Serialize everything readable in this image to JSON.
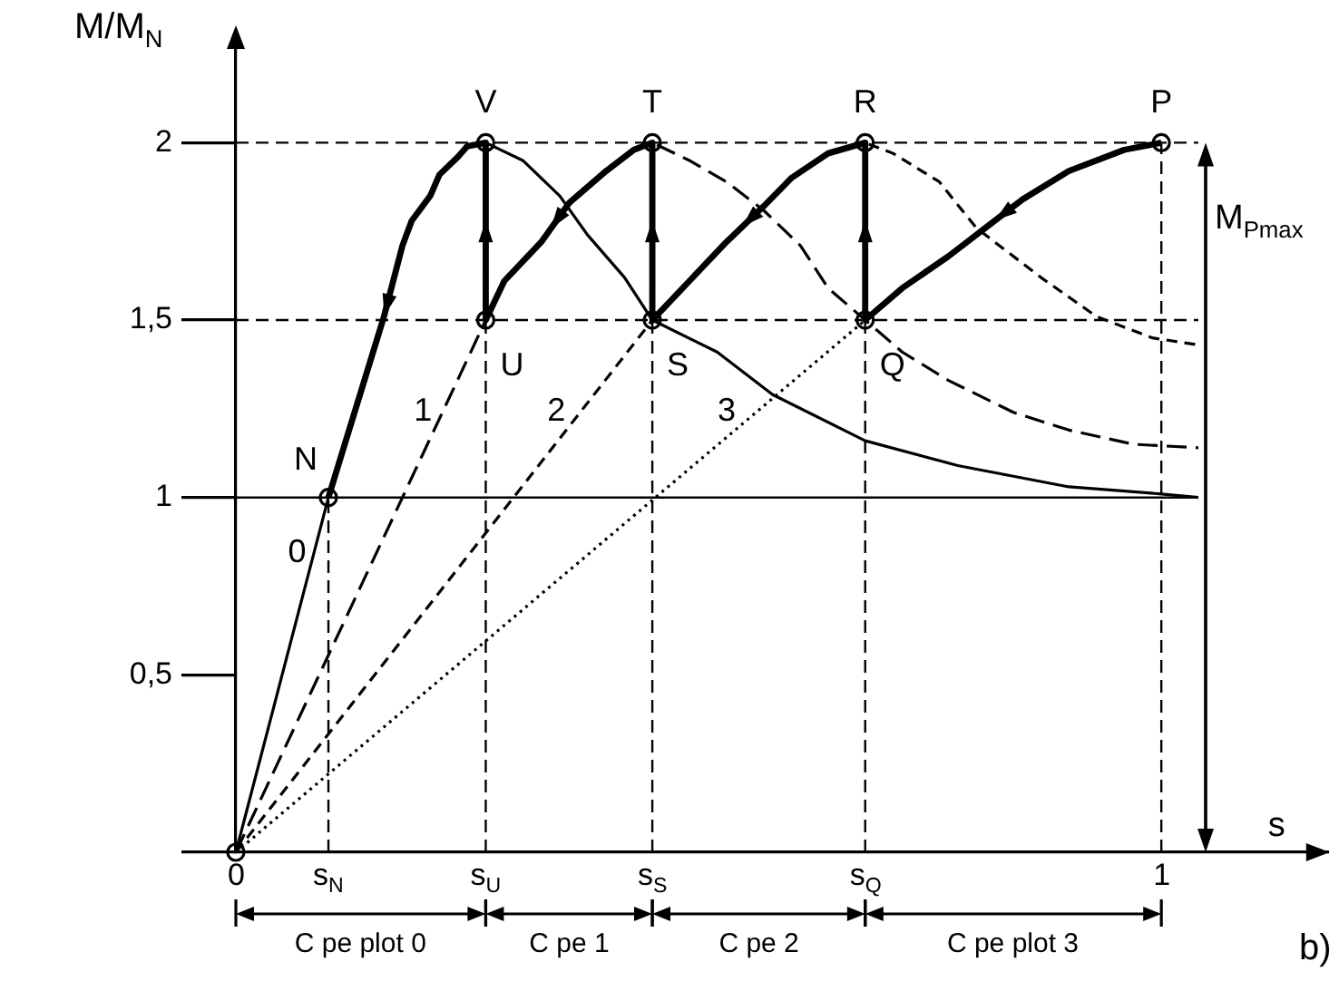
{
  "chart_data": {
    "type": "line",
    "xlabel": "s",
    "ylabel": "M/M$_{N}$",
    "xlim": [
      0,
      1.18
    ],
    "ylim": [
      0,
      2.3
    ],
    "xticks": [
      0,
      {
        "value": 0.1,
        "label": "s$_{N}$"
      },
      {
        "value": 0.27,
        "label": "s$_{U}$"
      },
      {
        "value": 0.45,
        "label": "s$_{S}$"
      },
      {
        "value": 0.68,
        "label": "s$_{Q}$"
      },
      1
    ],
    "yticks": [
      {
        "value": 0,
        "label": null
      },
      {
        "value": 0.5,
        "label": "0,5"
      },
      1,
      {
        "value": 1.5,
        "label": "1,5"
      },
      2
    ],
    "grid": false,
    "legend": false,
    "series": [
      {
        "name": "0",
        "type": "line",
        "line_style": "solid",
        "color": "#000000",
        "x": [
          0,
          0.1,
          0.14,
          0.16,
          0.18,
          0.19,
          0.21,
          0.22,
          0.24,
          0.25,
          0.27,
          0.31,
          0.35,
          0.38,
          0.42,
          0.45,
          0.52,
          0.58,
          0.68,
          0.78,
          0.9,
          1,
          1.04
        ],
        "values": [
          0,
          1,
          1.34,
          1.51,
          1.71,
          1.78,
          1.85,
          1.91,
          1.96,
          1.99,
          2,
          1.95,
          1.85,
          1.74,
          1.62,
          1.5,
          1.41,
          1.29,
          1.16,
          1.09,
          1.03,
          1.01,
          1
        ]
      },
      {
        "name": "1",
        "type": "line",
        "line_style": "dashed",
        "color": "#000000",
        "x": [
          0,
          0.27,
          0.29,
          0.33,
          0.36,
          0.4,
          0.43,
          0.45,
          0.49,
          0.53,
          0.57,
          0.61,
          0.64,
          0.68,
          0.72,
          0.77,
          0.84,
          0.9,
          0.97,
          1.04
        ],
        "values": [
          0,
          1.5,
          1.61,
          1.72,
          1.83,
          1.92,
          1.98,
          2,
          1.95,
          1.89,
          1.81,
          1.71,
          1.59,
          1.5,
          1.41,
          1.33,
          1.24,
          1.19,
          1.15,
          1.14
        ]
      },
      {
        "name": "2",
        "type": "line",
        "line_style": "dashed",
        "color": "#000000",
        "x": [
          0,
          0.45,
          0.49,
          0.53,
          0.57,
          0.6,
          0.64,
          0.68,
          0.71,
          0.76,
          0.8,
          0.87,
          0.93,
          0.99,
          1.04
        ],
        "values": [
          0,
          1.5,
          1.61,
          1.72,
          1.82,
          1.9,
          1.97,
          2,
          1.97,
          1.89,
          1.76,
          1.62,
          1.51,
          1.45,
          1.43
        ]
      },
      {
        "name": "3",
        "type": "line",
        "line_style": "dotted",
        "color": "#000000",
        "x": [
          0,
          0.68,
          0.72,
          0.77,
          0.81,
          0.85,
          0.9,
          0.96,
          1
        ],
        "values": [
          0,
          1.5,
          1.59,
          1.68,
          1.76,
          1.84,
          1.92,
          1.98,
          2
        ]
      },
      {
        "type": "line",
        "line_style": "solid",
        "color": "#000000",
        "x": [
          1,
          0.96,
          0.9,
          0.85,
          0.81,
          0.77,
          0.72,
          0.68,
          0.68,
          0.64,
          0.6,
          0.57,
          0.53,
          0.49,
          0.45,
          0.45,
          0.43,
          0.4,
          0.36,
          0.33,
          0.29,
          0.27,
          0.27,
          0.25,
          0.24,
          0.22,
          0.21,
          0.19,
          0.18,
          0.16,
          0.14,
          0.1
        ],
        "values": [
          2,
          1.98,
          1.92,
          1.84,
          1.76,
          1.68,
          1.59,
          1.5,
          2,
          1.97,
          1.9,
          1.82,
          1.72,
          1.61,
          1.5,
          2,
          1.98,
          1.92,
          1.83,
          1.72,
          1.61,
          1.5,
          2,
          1.99,
          1.96,
          1.91,
          1.85,
          1.78,
          1.71,
          1.51,
          1.34,
          1
        ]
      },
      {
        "type": "scatter",
        "marker": "circle",
        "color": "#000000",
        "x": [
          0,
          0.1,
          0.27,
          0.27,
          0.45,
          0.45,
          0.68,
          0.68,
          1
        ],
        "values": [
          0,
          1,
          1.5,
          2,
          1.5,
          2,
          1.5,
          2,
          2
        ]
      }
    ],
    "ref_lines": [
      {
        "axis": "y",
        "value": 2,
        "line_style": "dashed",
        "color": "#000000"
      },
      {
        "axis": "y",
        "value": 1.5,
        "line_style": "dashed",
        "color": "#000000"
      },
      {
        "axis": "y",
        "value": 1,
        "line_style": "solid",
        "color": "#000000"
      },
      {
        "axis": "x",
        "value": 0.1,
        "line_style": "dashed",
        "color": "#000000"
      },
      {
        "axis": "x",
        "value": 0.27,
        "line_style": "dashed",
        "color": "#000000"
      },
      {
        "axis": "x",
        "value": 0.45,
        "line_style": "dashed",
        "color": "#000000"
      },
      {
        "axis": "x",
        "value": 0.68,
        "line_style": "dashed",
        "color": "#000000"
      },
      {
        "axis": "x",
        "value": 1,
        "line_style": "dashed",
        "color": "#000000"
      }
    ],
    "annotations": [
      {
        "text": "N",
        "x": 0.1,
        "y": 1
      },
      {
        "text": "U",
        "x": 0.27,
        "y": 1.5
      },
      {
        "text": "V",
        "x": 0.27,
        "y": 2
      },
      {
        "text": "S",
        "x": 0.45,
        "y": 1.5
      },
      {
        "text": "T",
        "x": 0.45,
        "y": 2
      },
      {
        "text": "Q",
        "x": 0.68,
        "y": 1.5
      },
      {
        "text": "R",
        "x": 0.68,
        "y": 2
      },
      {
        "text": "P",
        "x": 1,
        "y": 2
      },
      "M$_{Pmax}$",
      "C pe plot 0",
      "C pe 1",
      "C pe 2",
      "C pe plot 3",
      "b)"
    ]
  }
}
